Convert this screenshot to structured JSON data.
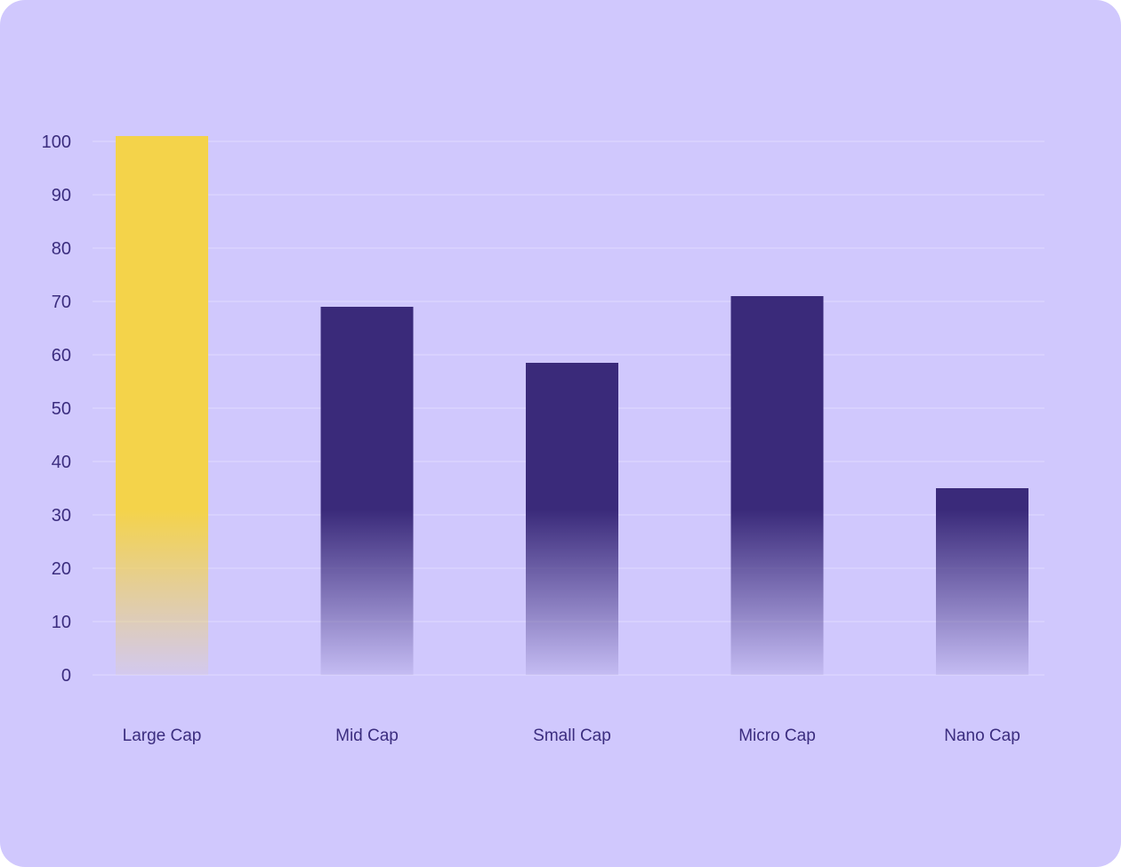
{
  "chart_data": {
    "type": "bar",
    "categories": [
      "Large Cap",
      "Mid Cap",
      "Small Cap",
      "Micro Cap",
      "Nano Cap"
    ],
    "values": [
      101,
      69,
      58.5,
      71,
      35
    ],
    "highlighted": "Large Cap",
    "ylim": [
      0,
      100
    ],
    "yticks": [
      0,
      10,
      20,
      30,
      40,
      50,
      60,
      70,
      80,
      90,
      100
    ],
    "grid": true,
    "colors": {
      "background": "#d0c8fd",
      "highlight": "#f4d34a",
      "bar": "#3a2a7a",
      "text": "#3b2d7f",
      "grid": "#e0dafe"
    }
  }
}
